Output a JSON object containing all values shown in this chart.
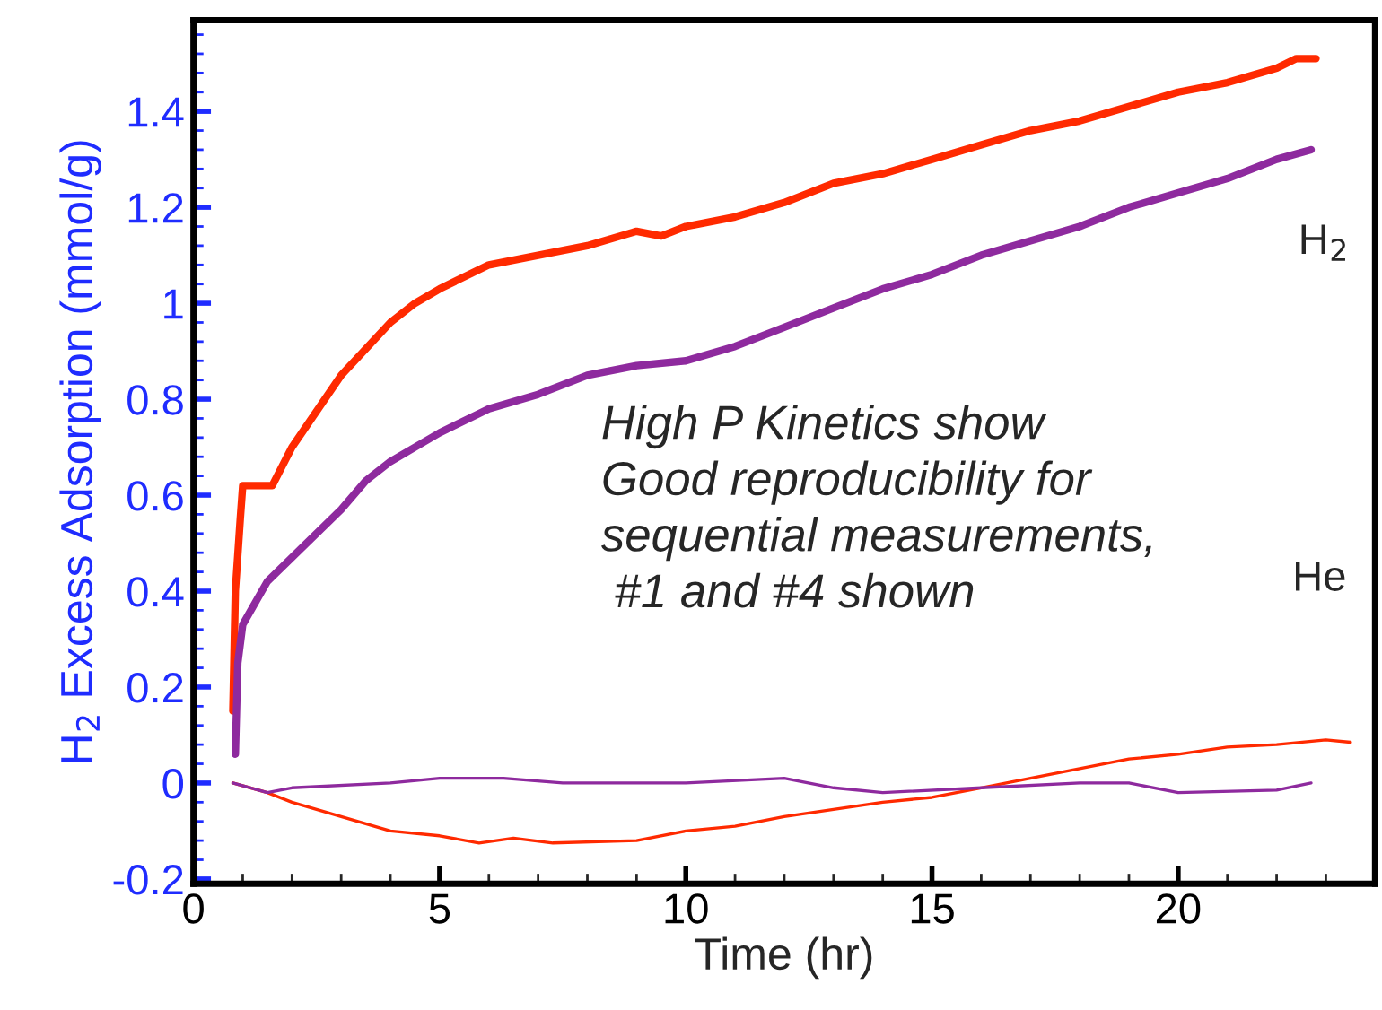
{
  "chart_data": {
    "type": "line",
    "xlabel": "Time (hr)",
    "ylabel": "H$_{2}$ Excess Adsorption (mmol/g)",
    "xlim": [
      0,
      24
    ],
    "xticks": [
      0,
      5,
      10,
      15,
      20
    ],
    "ylim": [
      -0.21,
      1.59
    ],
    "yticks": [
      -0.2,
      0,
      0.2,
      0.4,
      0.6,
      0.8,
      1,
      1.2,
      1.4
    ],
    "grid": false,
    "legend": false,
    "marker": "none",
    "line_style": "solid",
    "series": [
      {
        "color": "#ff2a00",
        "x": [
          0.8,
          0.85,
          0.95,
          1.0,
          1.6,
          2,
          3,
          4,
          4.5,
          5,
          6,
          7,
          8,
          9,
          9.5,
          10,
          11,
          12,
          13,
          14,
          15,
          16,
          17,
          18,
          19,
          20,
          21,
          22,
          22.4,
          22.8
        ],
        "values": [
          0.15,
          0.4,
          0.55,
          0.62,
          0.62,
          0.7,
          0.85,
          0.96,
          1.0,
          1.03,
          1.08,
          1.1,
          1.12,
          1.15,
          1.14,
          1.16,
          1.18,
          1.21,
          1.25,
          1.27,
          1.3,
          1.33,
          1.36,
          1.38,
          1.41,
          1.44,
          1.46,
          1.49,
          1.51,
          1.51
        ]
      },
      {
        "color": "#8e2a9e",
        "x": [
          0.85,
          0.9,
          1.0,
          1.5,
          2,
          3,
          3.5,
          4,
          5,
          6,
          7,
          8,
          9,
          10,
          11,
          12,
          13,
          14,
          15,
          16,
          17,
          18,
          19,
          20,
          21,
          22,
          22.7
        ],
        "values": [
          0.06,
          0.25,
          0.33,
          0.42,
          0.47,
          0.57,
          0.63,
          0.67,
          0.73,
          0.78,
          0.81,
          0.85,
          0.87,
          0.88,
          0.91,
          0.95,
          0.99,
          1.03,
          1.06,
          1.1,
          1.13,
          1.16,
          1.2,
          1.23,
          1.26,
          1.3,
          1.32
        ]
      },
      {
        "color": "#ff2a00",
        "x": [
          0.8,
          1.5,
          2,
          3,
          4,
          5,
          5.8,
          6.5,
          7.3,
          9,
          10,
          11,
          12,
          13,
          14,
          15,
          16,
          17,
          18,
          19,
          20,
          21,
          22,
          23,
          23.5
        ],
        "values": [
          0.0,
          -0.02,
          -0.04,
          -0.07,
          -0.1,
          -0.11,
          -0.125,
          -0.115,
          -0.125,
          -0.12,
          -0.1,
          -0.09,
          -0.07,
          -0.055,
          -0.04,
          -0.03,
          -0.01,
          0.01,
          0.03,
          0.05,
          0.06,
          0.075,
          0.08,
          0.09,
          0.085
        ]
      },
      {
        "color": "#8e2a9e",
        "x": [
          0.8,
          1.5,
          2,
          4,
          5,
          6.3,
          7.5,
          10,
          12,
          13,
          14,
          16,
          18,
          19,
          20,
          22,
          22.7
        ],
        "values": [
          0.0,
          -0.02,
          -0.01,
          0.0,
          0.01,
          0.01,
          0.0,
          0.0,
          0.01,
          -0.01,
          -0.02,
          -0.01,
          0.0,
          0.0,
          -0.02,
          -0.015,
          0.0
        ]
      }
    ],
    "annotations": [
      "H$_{2}$",
      "He",
      "High P Kinetics show\nGood reproducibility for\nsequential measurements,\n #1 and #4 shown"
    ]
  }
}
